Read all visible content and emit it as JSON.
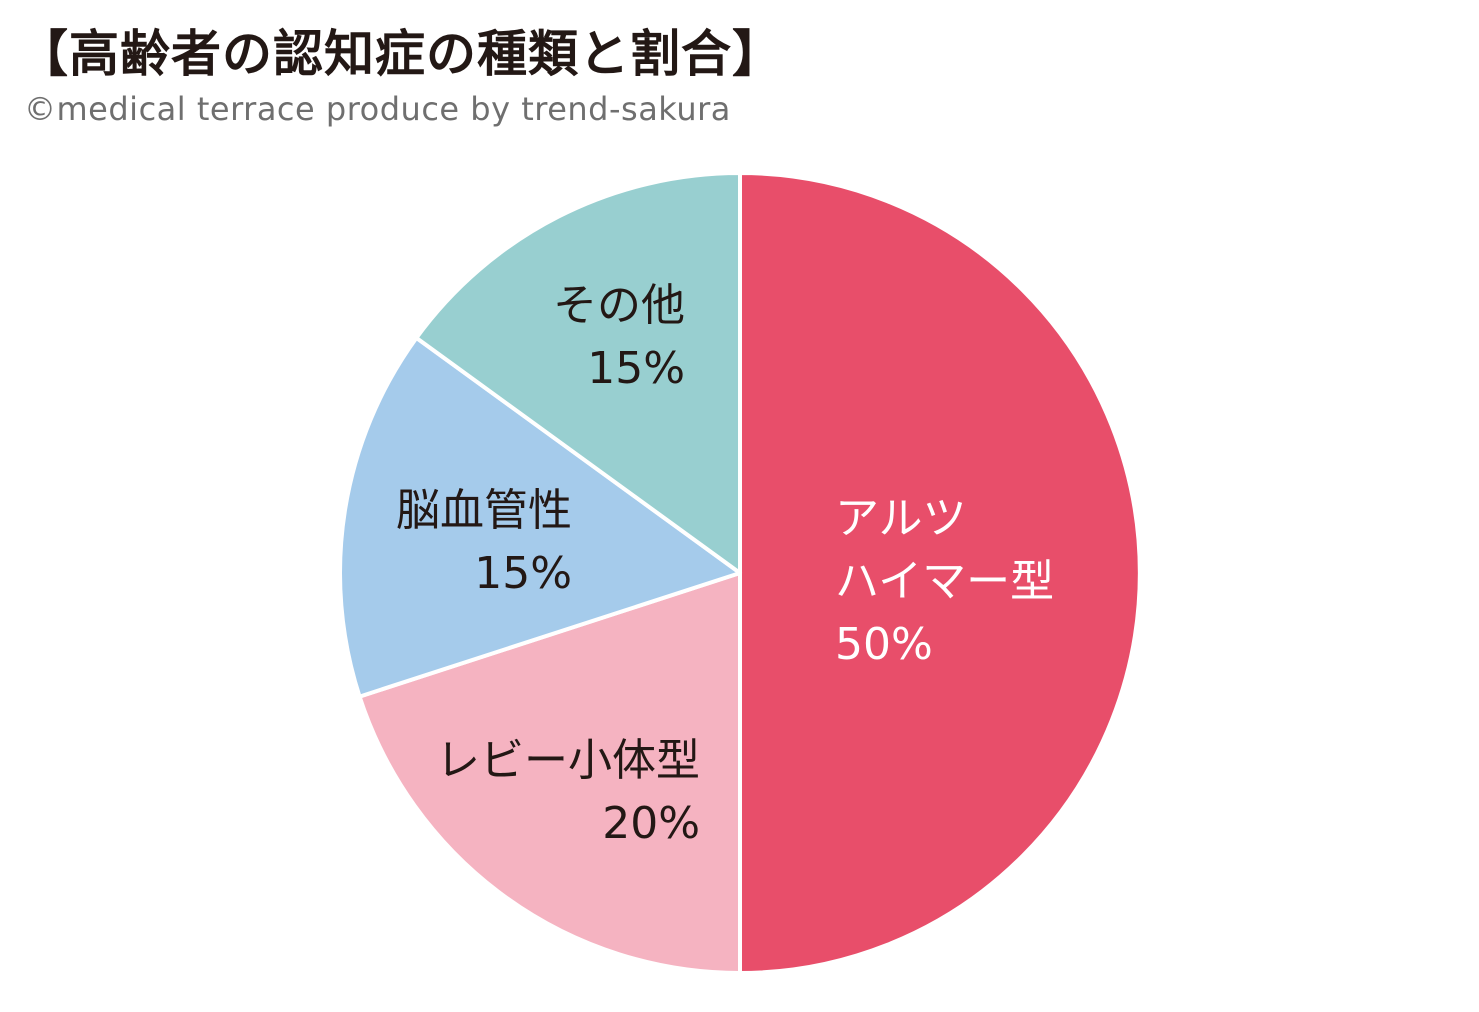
{
  "header": {
    "title": "【高齢者の認知症の種類と割合】",
    "subtitle": "©medical terrace produce by trend-sakura"
  },
  "chart_data": {
    "type": "pie",
    "title": "【高齢者の認知症の種類と割合】",
    "start": "12 o'clock",
    "direction": "clockwise",
    "slices": [
      {
        "label_lines": [
          "アルツ",
          "ハイマー型"
        ],
        "percent_label": "50%",
        "value": 50,
        "color": "#e84e6a",
        "text_color": "#ffffff"
      },
      {
        "label_lines": [
          "レビー小体型"
        ],
        "percent_label": "20%",
        "value": 20,
        "color": "#f5b3c1",
        "text_color": "#231815"
      },
      {
        "label_lines": [
          "脳血管性"
        ],
        "percent_label": "15%",
        "value": 15,
        "color": "#a5cbeb",
        "text_color": "#231815"
      },
      {
        "label_lines": [
          "その他"
        ],
        "percent_label": "15%",
        "value": 15,
        "color": "#98cfd0",
        "text_color": "#231815"
      }
    ]
  }
}
